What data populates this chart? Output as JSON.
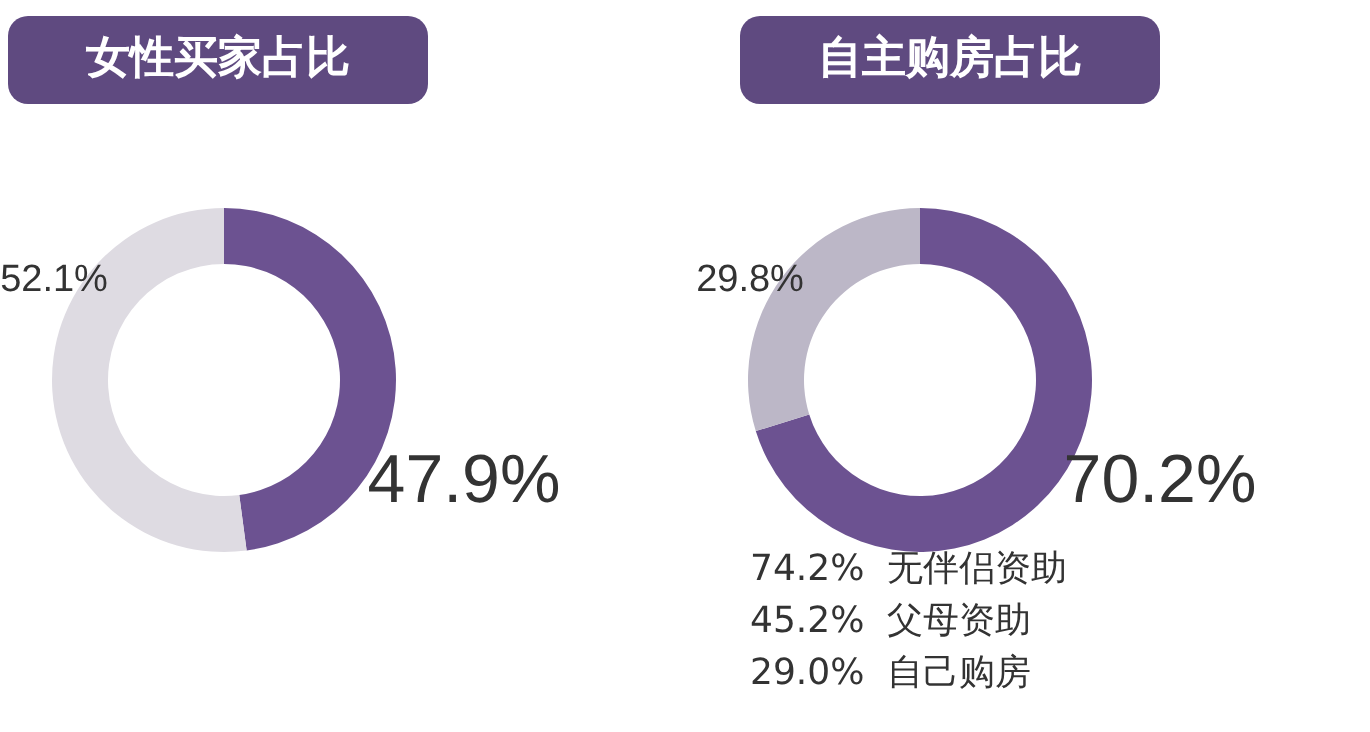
{
  "chart_data": [
    {
      "type": "donut",
      "title": "女性买家占比",
      "categories": [
        null,
        null
      ],
      "values": [
        47.9,
        52.1
      ],
      "colors": [
        "#6c5291",
        "#dedbe2"
      ],
      "value_labels": [
        "47.9%",
        "52.1%"
      ]
    },
    {
      "type": "donut",
      "title": "自主购房占比",
      "categories": [
        null,
        null
      ],
      "values": [
        70.2,
        29.8
      ],
      "colors": [
        "#6c5291",
        "#bcb7c7"
      ],
      "value_labels": [
        "70.2%",
        "29.8%"
      ],
      "annotations": [
        "74.2%  无伴侣资助",
        "45.2%  父母资助",
        "29.0%  自己购房"
      ]
    }
  ]
}
